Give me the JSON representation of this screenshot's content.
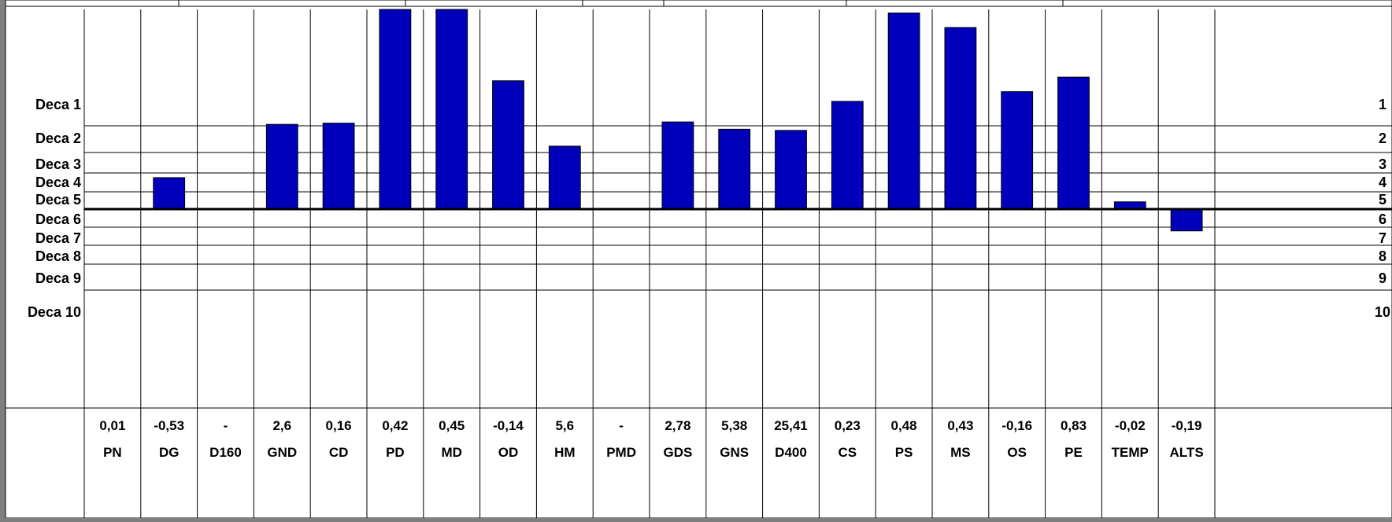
{
  "chart_data": {
    "type": "bar",
    "title": "",
    "xlabel": "",
    "ylabel": "",
    "ylim": [
      -10,
      8.3
    ],
    "levels_left": [
      "Deca 1",
      "Deca 2",
      "Deca 3",
      "Deca 4",
      "Deca 5",
      "Deca 6",
      "Deca 7",
      "Deca 8",
      "Deca 9",
      "Deca 10"
    ],
    "levels_right": [
      "1",
      "2",
      "3",
      "4",
      "5",
      "6",
      "7",
      "8",
      "9",
      "10"
    ],
    "categories": [
      "PN",
      "DG",
      "D160",
      "GND",
      "CD",
      "PD",
      "MD",
      "OD",
      "HM",
      "PMD",
      "GDS",
      "GNS",
      "D400",
      "CS",
      "PS",
      "MS",
      "OS",
      "PE",
      "TEMP",
      "ALTS"
    ],
    "value_labels": [
      "0,01",
      "-0,53",
      "-",
      "2,6",
      "0,16",
      "0,42",
      "0,45",
      "-0,14",
      "5,6",
      "-",
      "2,78",
      "5,38",
      "25,41",
      "0,23",
      "0,48",
      "0,43",
      "-0,16",
      "0,83",
      "-0,02",
      "-0,19"
    ],
    "values": [
      0,
      1.3,
      null,
      3.5,
      3.55,
      8.3,
      8.3,
      5.3,
      2.6,
      null,
      3.6,
      3.3,
      3.25,
      4.45,
      8.1,
      7.5,
      4.85,
      5.45,
      0.3,
      -0.9
    ],
    "bar_color": "#0000bb"
  }
}
